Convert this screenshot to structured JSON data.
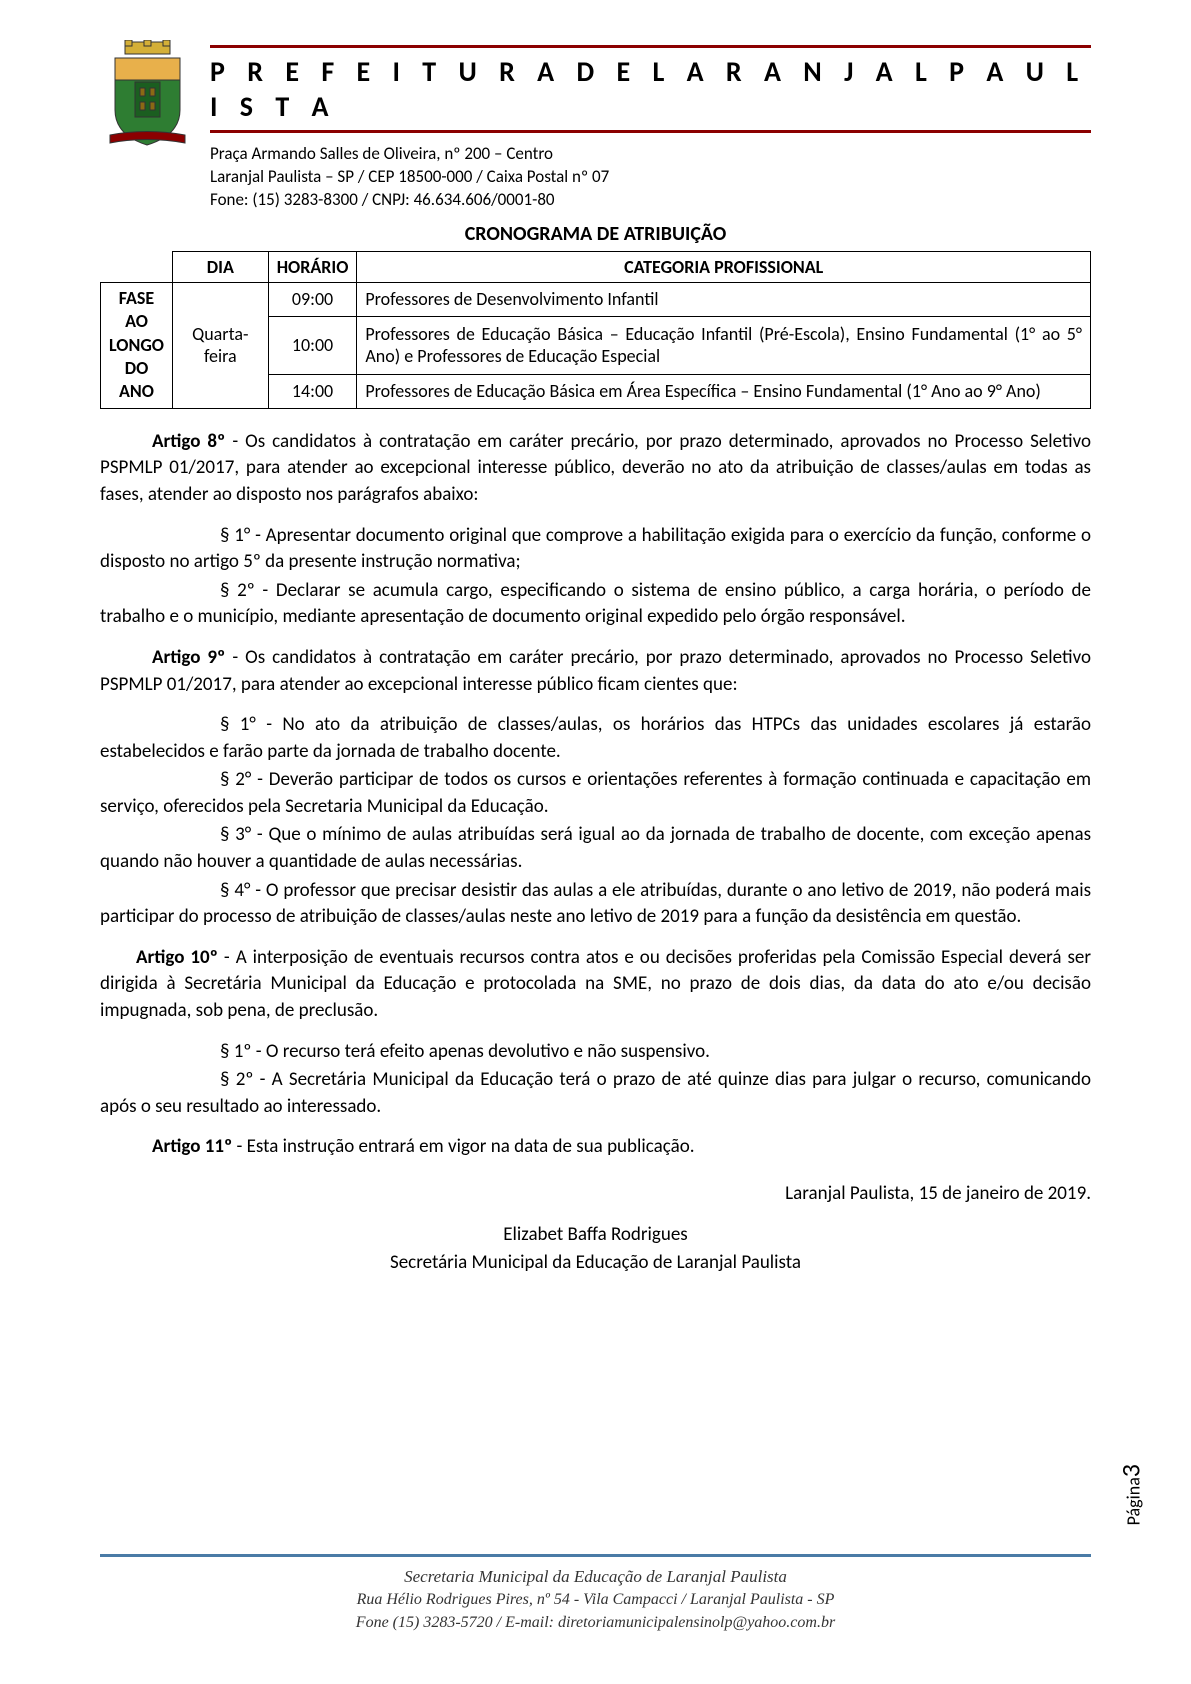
{
  "header": {
    "title": "P R E F E I T U R A   D E   L A R A N J A L   P A U L I S T A",
    "address1": "Praça Armando Salles de Oliveira, nº 200 – Centro",
    "address2": "Laranjal Paulista – SP / CEP 18500-000 / Caixa Postal nº 07",
    "address3": "Fone: (15) 3283-8300 / CNPJ: 46.634.606/0001-80"
  },
  "crest": {
    "colors": {
      "crown": "#d4af37",
      "shield_top": "#e8b04b",
      "shield_green": "#2e7d32",
      "shield_center": "#1b5e20",
      "banner": "#8b0000",
      "outline": "#333"
    }
  },
  "table": {
    "section_title": "CRONOGRAMA DE ATRIBUIÇÃO",
    "headers": {
      "dia": "DIA",
      "horario": "HORÁRIO",
      "categoria": "CATEGORIA PROFISSIONAL"
    },
    "row_label": "FASE AO LONGO DO ANO",
    "dia": "Quarta-feira",
    "rows": [
      {
        "time": "09:00",
        "cat": "Professores de Desenvolvimento Infantil"
      },
      {
        "time": "10:00",
        "cat": "Professores de Educação Básica – Educação Infantil (Pré-Escola), Ensino Fundamental (1° ao 5° Ano) e Professores de Educação Especial"
      },
      {
        "time": "14:00",
        "cat": "Professores de Educação Básica em Área Específica – Ensino Fundamental (1° Ano ao 9° Ano)"
      }
    ]
  },
  "articles": {
    "a8_label": "Artigo 8º",
    "a8_body": " - Os candidatos à contratação em caráter precário, por prazo determinado, aprovados no Processo Seletivo PSPMLP 01/2017, para atender ao excepcional interesse público, deverão no ato da atribuição de classes/aulas em todas as fases, atender ao disposto nos parágrafos abaixo:",
    "a8_p1": "§ 1° - Apresentar documento original que comprove a habilitação exigida para o exercício da função, conforme o disposto no artigo 5º da presente instrução normativa;",
    "a8_p2": "§ 2º - Declarar se acumula cargo, especificando o sistema de ensino público, a carga horária, o período de trabalho e o município, mediante apresentação de documento original expedido pelo órgão responsável.",
    "a9_label": "Artigo 9º",
    "a9_body": " - Os candidatos à contratação em caráter precário, por prazo determinado, aprovados no Processo Seletivo PSPMLP 01/2017, para atender ao excepcional interesse público ficam cientes que:",
    "a9_p1": "§ 1° - No ato da atribuição de classes/aulas, os horários das HTPCs das unidades escolares já estarão estabelecidos e farão parte da jornada de trabalho docente.",
    "a9_p2": "§ 2° - Deverão participar de todos os cursos e orientações referentes à formação continuada e capacitação em serviço, oferecidos pela Secretaria Municipal da Educação.",
    "a9_p3": "§ 3° - Que o mínimo de aulas atribuídas será igual ao da jornada de trabalho de docente, com exceção apenas quando não houver a quantidade de aulas necessárias.",
    "a9_p4": "§ 4° - O professor que precisar desistir das aulas a ele atribuídas, durante o ano letivo de 2019, não poderá mais participar do processo de atribuição de classes/aulas neste ano letivo de 2019 para a função da desistência em questão.",
    "a10_label": "Artigo 10º",
    "a10_body": " - A interposição de eventuais recursos contra atos e ou decisões proferidas pela Comissão Especial deverá ser dirigida à Secretária Municipal da Educação e protocolada na SME, no prazo de dois dias, da data do ato e/ou decisão impugnada, sob pena, de preclusão.",
    "a10_p1": "§ 1º - O recurso terá efeito apenas devolutivo e não suspensivo.",
    "a10_p2": "§ 2º - A Secretária Municipal da Educação terá o prazo de até quinze dias para julgar o recurso, comunicando após o seu resultado ao interessado.",
    "a11_label": "Artigo 11º",
    "a11_body": " - Esta instrução entrará em vigor na data de sua publicação."
  },
  "date_line": "Laranjal Paulista, 15 de janeiro de 2019.",
  "signature": {
    "name": "Elizabet Baffa Rodrigues",
    "role": "Secretária Municipal da Educação de Laranjal Paulista"
  },
  "page": {
    "label": "Página",
    "num": "3"
  },
  "footer": {
    "line1": "Secretaria Municipal da Educação de Laranjal Paulista",
    "line2": "Rua Hélio Rodrigues Pires, nº 54 - Vila Campacci / Laranjal Paulista - SP",
    "line3": "Fone (15) 3283-5720 / E-mail: diretoriamunicipalensinolp@yahoo.com.br"
  }
}
